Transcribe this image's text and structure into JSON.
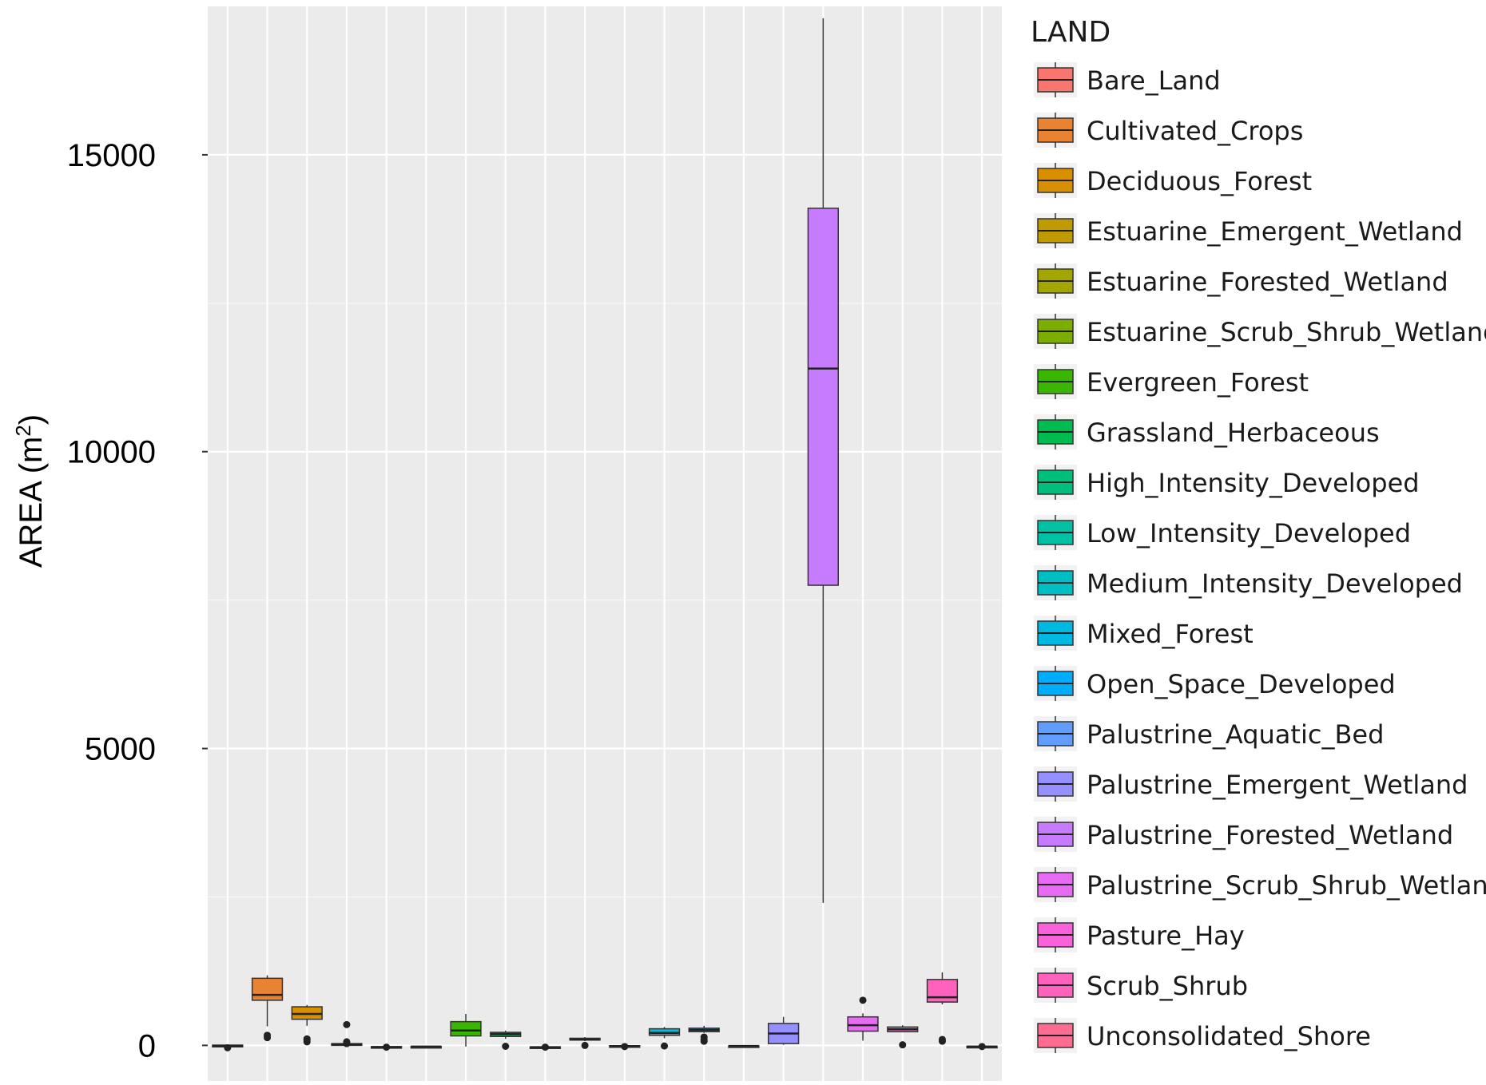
{
  "chart_data": {
    "type": "boxplot",
    "ylabel": "AREA (m",
    "ylabel_superscript": "2",
    "ylabel_close": ")",
    "xlabel": "",
    "ylim": [
      -600,
      17500
    ],
    "yticks": [
      0,
      5000,
      10000,
      15000
    ],
    "ytick_labels": [
      "0",
      "5000",
      "10000",
      "15000"
    ],
    "grid": true,
    "panel_background": "#ebebeb",
    "legend_position": "right",
    "legend_title": "LAND",
    "series": [
      {
        "name": "Bare_Land",
        "color": "#F8766D",
        "whisker_low": -40,
        "q1": -25,
        "median": -10,
        "q3": 5,
        "whisker_high": 15,
        "outliers": [
          -40
        ]
      },
      {
        "name": "Cultivated_Crops",
        "color": "#EA8331",
        "whisker_low": 320,
        "q1": 760,
        "median": 850,
        "q3": 1130,
        "whisker_high": 1180,
        "outliers": [
          130,
          170
        ]
      },
      {
        "name": "Deciduous_Forest",
        "color": "#D89000",
        "whisker_low": 330,
        "q1": 440,
        "median": 530,
        "q3": 650,
        "whisker_high": 680,
        "outliers": [
          60,
          90,
          110
        ]
      },
      {
        "name": "Estuarine_Emergent_Wetland",
        "color": "#C09B00",
        "whisker_low": -5,
        "q1": 0,
        "median": 20,
        "q3": 30,
        "whisker_high": 60,
        "outliers": [
          30,
          60,
          350
        ]
      },
      {
        "name": "Estuarine_Forested_Wetland",
        "color": "#A3A500",
        "whisker_low": -40,
        "q1": -35,
        "median": -30,
        "q3": -20,
        "whisker_high": -10,
        "outliers": [
          -30
        ]
      },
      {
        "name": "Estuarine_Scrub_Shrub_Wetland",
        "color": "#7CAE00",
        "whisker_low": -25,
        "q1": -22,
        "median": -20,
        "q3": -18,
        "whisker_high": -15,
        "outliers": []
      },
      {
        "name": "Evergreen_Forest",
        "color": "#39B600",
        "whisker_low": -20,
        "q1": 160,
        "median": 250,
        "q3": 400,
        "whisker_high": 530,
        "outliers": []
      },
      {
        "name": "Grassland_Herbaceous",
        "color": "#00BB4E",
        "whisker_low": 110,
        "q1": 150,
        "median": 190,
        "q3": 220,
        "whisker_high": 250,
        "outliers": [
          -15
        ]
      },
      {
        "name": "High_Intensity_Developed",
        "color": "#00BF7D",
        "whisker_low": -40,
        "q1": -35,
        "median": -30,
        "q3": -25,
        "whisker_high": -15,
        "outliers": [
          -30
        ]
      },
      {
        "name": "Low_Intensity_Developed",
        "color": "#00C1A3",
        "whisker_low": 70,
        "q1": 90,
        "median": 100,
        "q3": 120,
        "whisker_high": 140,
        "outliers": [
          0
        ]
      },
      {
        "name": "Medium_Intensity_Developed",
        "color": "#00BFC4",
        "whisker_low": -30,
        "q1": -25,
        "median": -15,
        "q3": -5,
        "whisker_high": 5,
        "outliers": [
          -20
        ]
      },
      {
        "name": "Mixed_Forest",
        "color": "#00B9E3",
        "whisker_low": 120,
        "q1": 170,
        "median": 210,
        "q3": 280,
        "whisker_high": 310,
        "outliers": [
          -10
        ]
      },
      {
        "name": "Open_Space_Developed",
        "color": "#00ADFA",
        "whisker_low": 210,
        "q1": 230,
        "median": 260,
        "q3": 290,
        "whisker_high": 330,
        "outliers": [
          70,
          100,
          140
        ]
      },
      {
        "name": "Palustrine_Aquatic_Bed",
        "color": "#619CFF",
        "whisker_low": -15,
        "q1": -12,
        "median": -10,
        "q3": -8,
        "whisker_high": -5,
        "outliers": []
      },
      {
        "name": "Palustrine_Emergent_Wetland",
        "color": "#9590FF",
        "whisker_low": 10,
        "q1": 30,
        "median": 200,
        "q3": 370,
        "whisker_high": 480,
        "outliers": []
      },
      {
        "name": "Palustrine_Forested_Wetland",
        "color": "#C77CFF",
        "whisker_low": 2400,
        "q1": 7750,
        "median": 11400,
        "q3": 14100,
        "whisker_high": 17300,
        "outliers": []
      },
      {
        "name": "Palustrine_Scrub_Shrub_Wetland",
        "color": "#E76BF3",
        "whisker_low": 80,
        "q1": 240,
        "median": 340,
        "q3": 480,
        "whisker_high": 540,
        "outliers": [
          760
        ]
      },
      {
        "name": "Pasture_Hay",
        "color": "#FA62DB",
        "whisker_low": 220,
        "q1": 230,
        "median": 270,
        "q3": 310,
        "whisker_high": 340,
        "outliers": [
          10
        ]
      },
      {
        "name": "Scrub_Shrub",
        "color": "#FF62BC",
        "whisker_low": 690,
        "q1": 730,
        "median": 810,
        "q3": 1110,
        "whisker_high": 1230,
        "outliers": [
          70,
          100
        ]
      },
      {
        "name": "Unconsolidated_Shore",
        "color": "#FF6C91",
        "whisker_low": -30,
        "q1": -25,
        "median": -20,
        "q3": -15,
        "whisker_high": -5,
        "outliers": [
          -20
        ]
      }
    ]
  }
}
